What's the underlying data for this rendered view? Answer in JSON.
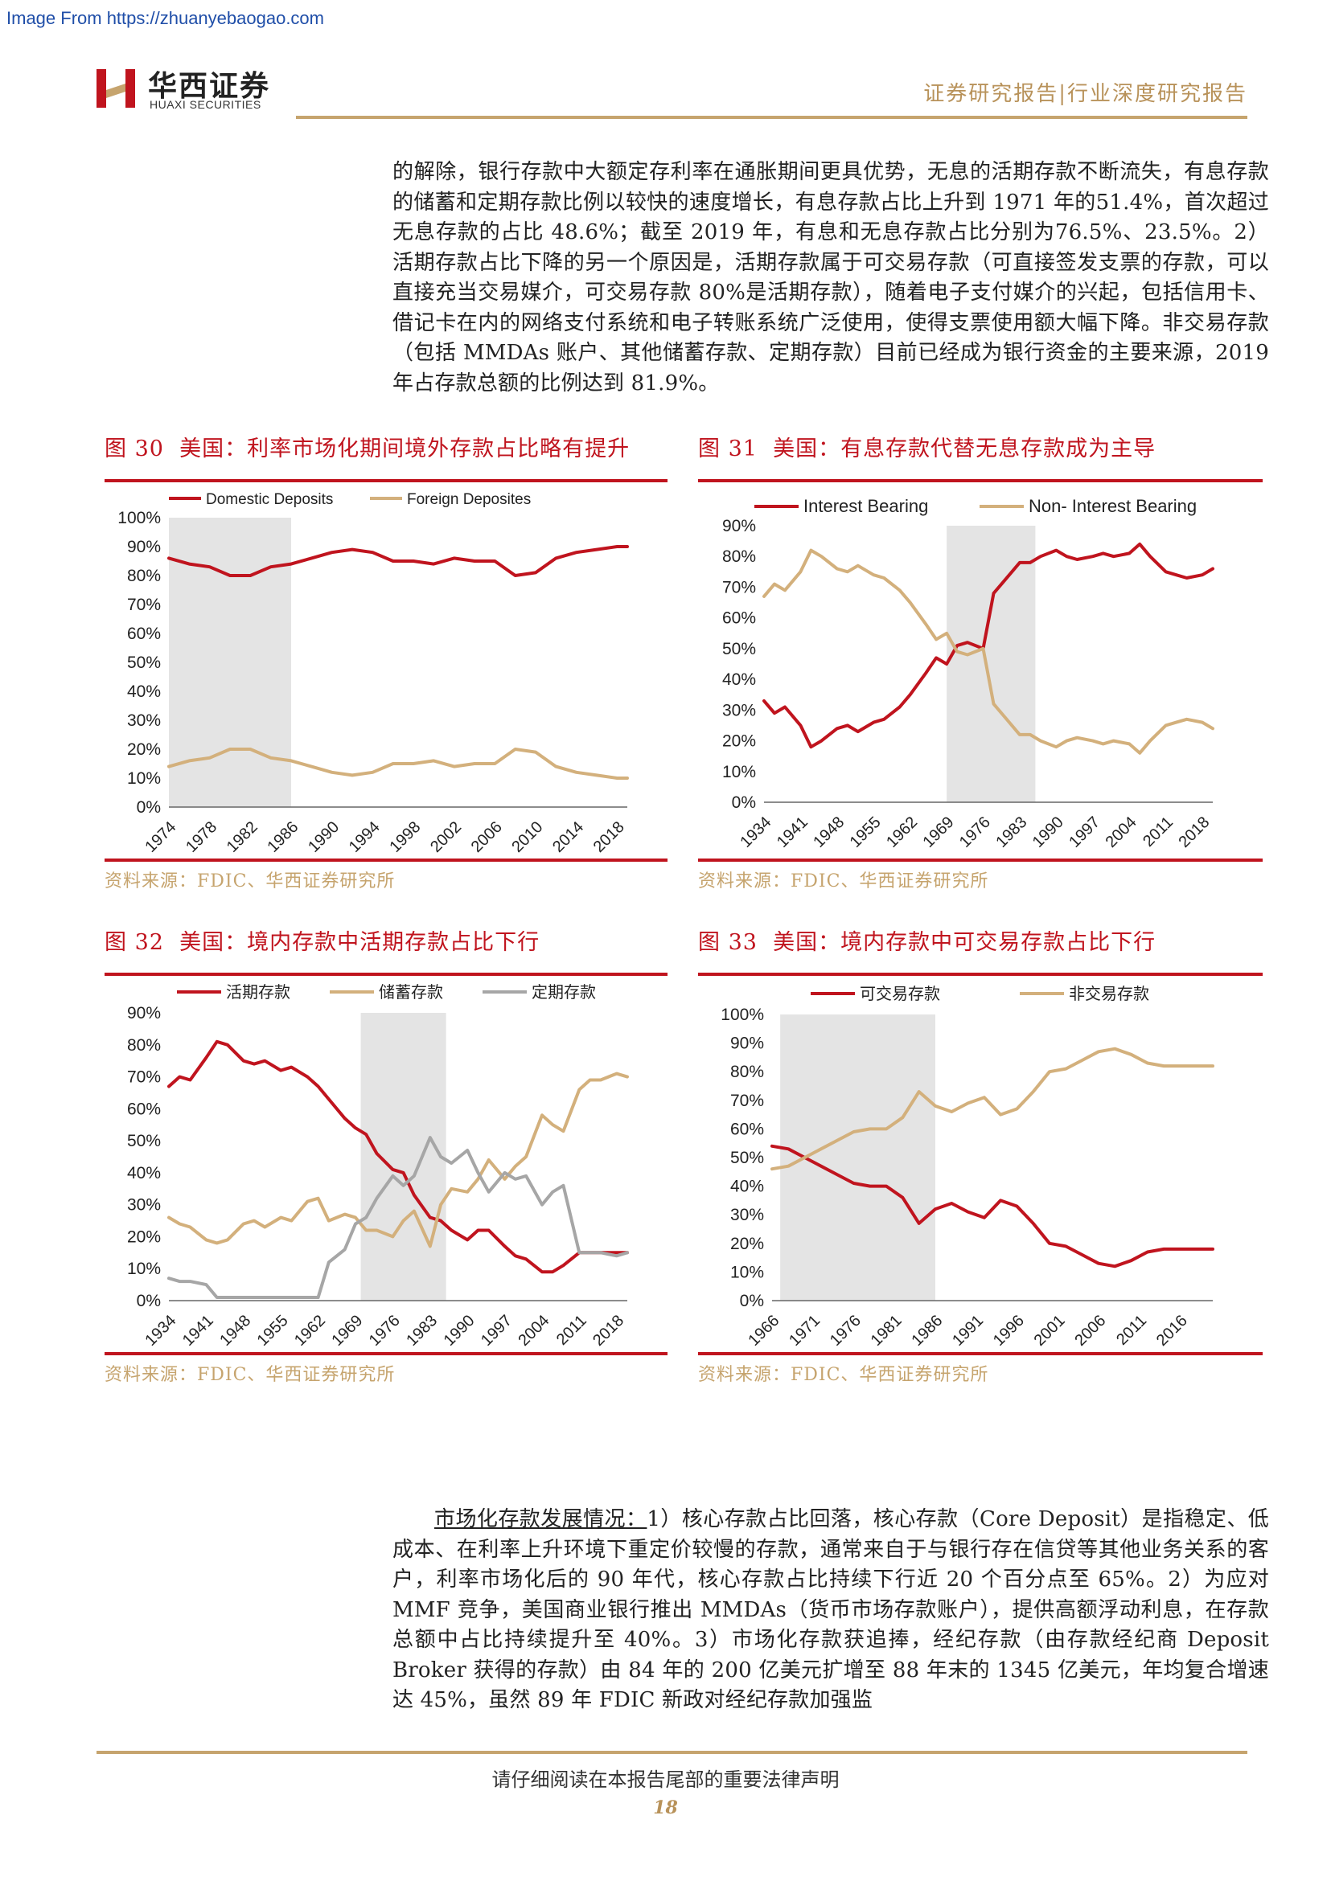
{
  "watermark": "Image From https://zhuanyebaogao.com",
  "header": {
    "brand_cn": "华西证券",
    "brand_en": "HUAXI SECURITIES",
    "report_type": "证券研究报告|行业深度研究报告"
  },
  "paragraph_top": "的解除，银行存款中大额定存利率在通胀期间更具优势，无息的活期存款不断流失，有息存款的储蓄和定期存款比例以较快的速度增长，有息存款占比上升到 1971 年的51.4%，首次超过无息存款的占比 48.6%；截至 2019 年，有息和无息存款占比分别为76.5%、23.5%。2）活期存款占比下降的另一个原因是，活期存款属于可交易存款（可直接签发支票的存款，可以直接充当交易媒介，可交易存款 80%是活期存款），随着电子支付媒介的兴起，包括信用卡、借记卡在内的网络支付系统和电子转账系统广泛使用，使得支票使用额大幅下降。非交易存款（包括 MMDAs 账户、其他储蓄存款、定期存款）目前已经成为银行资金的主要来源，2019 年占存款总额的比例达到 81.9%。",
  "paragraph_bottom": {
    "lead": "市场化存款发展情况：",
    "body": "1）核心存款占比回落，核心存款（Core Deposit）是指稳定、低成本、在利率上升环境下重定价较慢的存款，通常来自于与银行存在信贷等其他业务关系的客户，利率市场化后的 90 年代，核心存款占比持续下行近 20 个百分点至 65%。2）为应对 MMF 竞争，美国商业银行推出 MMDAs（货币市场存款账户），提供高额浮动利息，在存款总额中占比持续提升至 40%。3）市场化存款获追捧，经纪存款（由存款经纪商 Deposit Broker 获得的存款）由 84 年的 200 亿美元扩增至 88 年末的 1345 亿美元，年均复合增速达 45%，虽然 89 年 FDIC 新政对经纪存款加强监"
  },
  "footer": {
    "notice": "请仔细阅读在本报告尾部的重要法律声明",
    "page": "18"
  },
  "colors": {
    "red": "#c0141e",
    "gold": "#d3b07c",
    "gray": "#a6a6a6",
    "shade": "#e4e4e4"
  },
  "chart_data": [
    {
      "id": "fig30",
      "type": "line",
      "figure_label": "图 30",
      "title": "美国：利率市场化期间境外存款占比略有提升",
      "source": "资料来源：FDIC、华西证券研究所",
      "legend_position": "top",
      "x": [
        1974,
        1976,
        1978,
        1980,
        1982,
        1984,
        1986,
        1988,
        1990,
        1992,
        1994,
        1996,
        1998,
        2000,
        2002,
        2004,
        2006,
        2008,
        2010,
        2012,
        2014,
        2016,
        2018,
        2019
      ],
      "x_ticks": [
        "1974",
        "1978",
        "1982",
        "1986",
        "1990",
        "1994",
        "1998",
        "2002",
        "2006",
        "2010",
        "2014",
        "2018"
      ],
      "ylim": [
        0,
        100
      ],
      "y_ticks": [
        "0%",
        "10%",
        "20%",
        "30%",
        "40%",
        "50%",
        "60%",
        "70%",
        "80%",
        "90%",
        "100%"
      ],
      "shade": [
        1974,
        1986
      ],
      "series": [
        {
          "name": "Domestic Deposits",
          "color": "red",
          "values": [
            86,
            84,
            83,
            80,
            80,
            83,
            84,
            86,
            88,
            89,
            88,
            85,
            85,
            84,
            86,
            85,
            85,
            80,
            81,
            86,
            88,
            89,
            90,
            90
          ]
        },
        {
          "name": "Foreign Deposites",
          "color": "gold",
          "values": [
            14,
            16,
            17,
            20,
            20,
            17,
            16,
            14,
            12,
            11,
            12,
            15,
            15,
            16,
            14,
            15,
            15,
            20,
            19,
            14,
            12,
            11,
            10,
            10
          ]
        }
      ]
    },
    {
      "id": "fig31",
      "type": "line",
      "figure_label": "图 31",
      "title": "美国：有息存款代替无息存款成为主导",
      "source": "资料来源：FDIC、华西证券研究所",
      "legend_position": "top",
      "x": [
        1934,
        1936,
        1938,
        1941,
        1943,
        1945,
        1948,
        1950,
        1952,
        1955,
        1957,
        1960,
        1962,
        1965,
        1967,
        1969,
        1971,
        1973,
        1976,
        1978,
        1980,
        1983,
        1985,
        1987,
        1990,
        1992,
        1994,
        1997,
        1999,
        2001,
        2004,
        2006,
        2008,
        2011,
        2013,
        2015,
        2018,
        2020
      ],
      "x_ticks": [
        "1934",
        "1941",
        "1948",
        "1955",
        "1962",
        "1969",
        "1976",
        "1983",
        "1990",
        "1997",
        "2004",
        "2011",
        "2018"
      ],
      "ylim": [
        0,
        90
      ],
      "y_ticks": [
        "0%",
        "10%",
        "20%",
        "30%",
        "40%",
        "50%",
        "60%",
        "70%",
        "80%",
        "90%"
      ],
      "shade": [
        1969,
        1986
      ],
      "series": [
        {
          "name": "Interest Bearing",
          "color": "red",
          "values": [
            33,
            29,
            31,
            25,
            18,
            20,
            24,
            25,
            23,
            26,
            27,
            31,
            35,
            42,
            47,
            45,
            51,
            52,
            50,
            68,
            72,
            78,
            78,
            80,
            82,
            80,
            79,
            80,
            81,
            80,
            81,
            84,
            80,
            75,
            74,
            73,
            74,
            76
          ]
        },
        {
          "name": "Non- Interest Bearing",
          "color": "gold",
          "values": [
            67,
            71,
            69,
            75,
            82,
            80,
            76,
            75,
            77,
            74,
            73,
            69,
            65,
            58,
            53,
            55,
            49,
            48,
            50,
            32,
            28,
            22,
            22,
            20,
            18,
            20,
            21,
            20,
            19,
            20,
            19,
            16,
            20,
            25,
            26,
            27,
            26,
            24
          ]
        }
      ]
    },
    {
      "id": "fig32",
      "type": "line",
      "figure_label": "图 32",
      "title": "美国：境内存款中活期存款占比下行",
      "source": "资料来源：FDIC、华西证券研究所",
      "legend_position": "top",
      "x": [
        1934,
        1936,
        1938,
        1941,
        1943,
        1945,
        1948,
        1950,
        1952,
        1955,
        1957,
        1960,
        1962,
        1964,
        1967,
        1969,
        1971,
        1973,
        1976,
        1978,
        1980,
        1983,
        1985,
        1987,
        1990,
        1992,
        1994,
        1997,
        1999,
        2001,
        2004,
        2006,
        2008,
        2011,
        2013,
        2015,
        2018,
        2020
      ],
      "x_ticks": [
        "1934",
        "1941",
        "1948",
        "1955",
        "1962",
        "1969",
        "1976",
        "1983",
        "1990",
        "1997",
        "2004",
        "2011",
        "2018"
      ],
      "ylim": [
        0,
        90
      ],
      "y_ticks": [
        "0%",
        "10%",
        "20%",
        "30%",
        "40%",
        "50%",
        "60%",
        "70%",
        "80%",
        "90%"
      ],
      "shade": [
        1970,
        1986
      ],
      "series": [
        {
          "name": "活期存款",
          "color": "red",
          "values": [
            67,
            70,
            69,
            76,
            81,
            80,
            75,
            74,
            75,
            72,
            73,
            70,
            67,
            63,
            57,
            54,
            52,
            46,
            41,
            40,
            33,
            26,
            25,
            22,
            19,
            22,
            22,
            17,
            14,
            13,
            9,
            9,
            11,
            15,
            15,
            15,
            15,
            15
          ]
        },
        {
          "name": "储蓄存款",
          "color": "gold",
          "values": [
            26,
            24,
            23,
            19,
            18,
            19,
            24,
            25,
            23,
            26,
            25,
            31,
            32,
            25,
            27,
            26,
            22,
            22,
            20,
            25,
            28,
            17,
            30,
            35,
            34,
            38,
            44,
            38,
            42,
            45,
            58,
            55,
            53,
            66,
            69,
            69,
            71,
            70
          ]
        },
        {
          "name": "定期存款",
          "color": "gray",
          "values": [
            7,
            6,
            6,
            5,
            1,
            1,
            1,
            1,
            1,
            1,
            1,
            1,
            1,
            12,
            16,
            24,
            26,
            32,
            39,
            36,
            39,
            51,
            45,
            43,
            47,
            40,
            34,
            40,
            38,
            39,
            30,
            34,
            36,
            15,
            15,
            15,
            14,
            15
          ]
        }
      ]
    },
    {
      "id": "fig33",
      "type": "line",
      "figure_label": "图 33",
      "title": "美国：境内存款中可交易存款占比下行",
      "source": "资料来源：FDIC、华西证券研究所",
      "legend_position": "top",
      "x": [
        1966,
        1968,
        1970,
        1972,
        1974,
        1976,
        1978,
        1980,
        1982,
        1984,
        1986,
        1988,
        1990,
        1992,
        1994,
        1996,
        1998,
        2000,
        2002,
        2004,
        2006,
        2008,
        2010,
        2012,
        2014,
        2016,
        2018,
        2020
      ],
      "x_ticks": [
        "1966",
        "1971",
        "1976",
        "1981",
        "1986",
        "1991",
        "1996",
        "2001",
        "2006",
        "2011",
        "2016"
      ],
      "ylim": [
        0,
        100
      ],
      "y_ticks": [
        "0%",
        "10%",
        "20%",
        "30%",
        "40%",
        "50%",
        "60%",
        "70%",
        "80%",
        "90%",
        "100%"
      ],
      "shade": [
        1967,
        1986
      ],
      "series": [
        {
          "name": "可交易存款",
          "color": "red",
          "values": [
            54,
            53,
            50,
            47,
            44,
            41,
            40,
            40,
            36,
            27,
            32,
            34,
            31,
            29,
            35,
            33,
            27,
            20,
            19,
            16,
            13,
            12,
            14,
            17,
            18,
            18,
            18,
            18
          ]
        },
        {
          "name": "非交易存款",
          "color": "gold",
          "values": [
            46,
            47,
            50,
            53,
            56,
            59,
            60,
            60,
            64,
            73,
            68,
            66,
            69,
            71,
            65,
            67,
            73,
            80,
            81,
            84,
            87,
            88,
            86,
            83,
            82,
            82,
            82,
            82
          ]
        }
      ]
    }
  ]
}
